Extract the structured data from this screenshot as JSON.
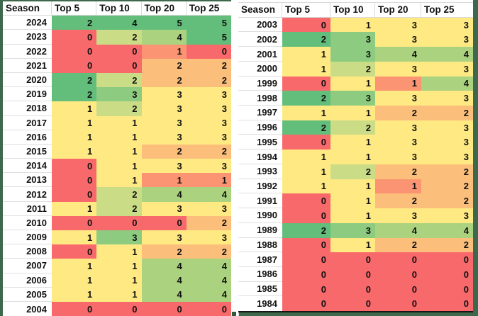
{
  "app": {
    "type": "spreadsheet-heatmap",
    "description": "Seasons vs Top 5/10/20/25 counts with red-yellow-green conditional formatting"
  },
  "colors": {
    "frame": "#3E684C",
    "gridline": "#D9D9D9",
    "table_bg": "#FFFFFF",
    "text": "#111111",
    "bottom_border": "#161616",
    "scale": {
      "red": "#F8696B",
      "salmon": "#FA9473",
      "orange": "#FCBF7B",
      "yellow": "#FFE983",
      "yellow_green": "#CBDC87",
      "med_green": "#8DCB80",
      "light_green": "#ABD27E",
      "green": "#63BE7B"
    }
  },
  "tables": [
    {
      "headers": [
        "Season",
        "Top 5",
        "Top 10",
        "Top 20",
        "Top 25"
      ],
      "rows": [
        {
          "season": "2024",
          "values": [
            "2",
            "4",
            "5",
            "5"
          ],
          "colors": [
            "green",
            "green",
            "green",
            "green"
          ]
        },
        {
          "season": "2023",
          "values": [
            "0",
            "2",
            "4",
            "5"
          ],
          "colors": [
            "red",
            "yellow_green",
            "light_green",
            "green"
          ]
        },
        {
          "season": "2022",
          "values": [
            "0",
            "0",
            "1",
            "0"
          ],
          "colors": [
            "red",
            "red",
            "salmon",
            "red"
          ]
        },
        {
          "season": "2021",
          "values": [
            "0",
            "0",
            "2",
            "2"
          ],
          "colors": [
            "red",
            "red",
            "orange",
            "orange"
          ]
        },
        {
          "season": "2020",
          "values": [
            "2",
            "2",
            "2",
            "2"
          ],
          "colors": [
            "green",
            "yellow_green",
            "orange",
            "orange"
          ]
        },
        {
          "season": "2019",
          "values": [
            "2",
            "3",
            "3",
            "3"
          ],
          "colors": [
            "green",
            "med_green",
            "yellow",
            "yellow"
          ]
        },
        {
          "season": "2018",
          "values": [
            "1",
            "2",
            "3",
            "3"
          ],
          "colors": [
            "yellow",
            "yellow_green",
            "yellow",
            "yellow"
          ]
        },
        {
          "season": "2017",
          "values": [
            "1",
            "1",
            "3",
            "3"
          ],
          "colors": [
            "yellow",
            "yellow",
            "yellow",
            "yellow"
          ]
        },
        {
          "season": "2016",
          "values": [
            "1",
            "1",
            "3",
            "3"
          ],
          "colors": [
            "yellow",
            "yellow",
            "yellow",
            "yellow"
          ]
        },
        {
          "season": "2015",
          "values": [
            "1",
            "1",
            "2",
            "2"
          ],
          "colors": [
            "yellow",
            "yellow",
            "orange",
            "orange"
          ]
        },
        {
          "season": "2014",
          "values": [
            "0",
            "1",
            "3",
            "3"
          ],
          "colors": [
            "red",
            "yellow",
            "yellow",
            "yellow"
          ]
        },
        {
          "season": "2013",
          "values": [
            "0",
            "1",
            "1",
            "1"
          ],
          "colors": [
            "red",
            "yellow",
            "salmon",
            "salmon"
          ]
        },
        {
          "season": "2012",
          "values": [
            "0",
            "2",
            "4",
            "4"
          ],
          "colors": [
            "red",
            "yellow_green",
            "light_green",
            "light_green"
          ]
        },
        {
          "season": "2011",
          "values": [
            "1",
            "2",
            "3",
            "3"
          ],
          "colors": [
            "yellow",
            "yellow_green",
            "yellow",
            "yellow"
          ]
        },
        {
          "season": "2010",
          "values": [
            "0",
            "0",
            "0",
            "2"
          ],
          "colors": [
            "red",
            "red",
            "red",
            "orange"
          ]
        },
        {
          "season": "2009",
          "values": [
            "1",
            "3",
            "3",
            "3"
          ],
          "colors": [
            "yellow",
            "med_green",
            "yellow",
            "yellow"
          ]
        },
        {
          "season": "2008",
          "values": [
            "0",
            "1",
            "2",
            "2"
          ],
          "colors": [
            "red",
            "yellow",
            "orange",
            "orange"
          ]
        },
        {
          "season": "2007",
          "values": [
            "1",
            "1",
            "4",
            "4"
          ],
          "colors": [
            "yellow",
            "yellow",
            "light_green",
            "light_green"
          ]
        },
        {
          "season": "2006",
          "values": [
            "1",
            "1",
            "4",
            "4"
          ],
          "colors": [
            "yellow",
            "yellow",
            "light_green",
            "light_green"
          ]
        },
        {
          "season": "2005",
          "values": [
            "1",
            "1",
            "4",
            "4"
          ],
          "colors": [
            "yellow",
            "yellow",
            "light_green",
            "light_green"
          ]
        },
        {
          "season": "2004",
          "values": [
            "0",
            "0",
            "0",
            "0"
          ],
          "colors": [
            "red",
            "red",
            "red",
            "red"
          ]
        }
      ]
    },
    {
      "headers": [
        "Season",
        "Top 5",
        "Top 10",
        "Top 20",
        "Top 25"
      ],
      "rows": [
        {
          "season": "2003",
          "values": [
            "0",
            "1",
            "3",
            "3"
          ],
          "colors": [
            "red",
            "yellow",
            "yellow",
            "yellow"
          ]
        },
        {
          "season": "2002",
          "values": [
            "2",
            "3",
            "3",
            "3"
          ],
          "colors": [
            "green",
            "med_green",
            "yellow",
            "yellow"
          ]
        },
        {
          "season": "2001",
          "values": [
            "1",
            "3",
            "4",
            "4"
          ],
          "colors": [
            "yellow",
            "med_green",
            "light_green",
            "light_green"
          ]
        },
        {
          "season": "2000",
          "values": [
            "1",
            "2",
            "3",
            "3"
          ],
          "colors": [
            "yellow",
            "yellow_green",
            "yellow",
            "yellow"
          ]
        },
        {
          "season": "1999",
          "values": [
            "0",
            "1",
            "1",
            "4"
          ],
          "colors": [
            "red",
            "yellow",
            "salmon",
            "light_green"
          ]
        },
        {
          "season": "1998",
          "values": [
            "2",
            "3",
            "3",
            "3"
          ],
          "colors": [
            "green",
            "med_green",
            "yellow",
            "yellow"
          ]
        },
        {
          "season": "1997",
          "values": [
            "1",
            "1",
            "2",
            "2"
          ],
          "colors": [
            "yellow",
            "yellow",
            "orange",
            "orange"
          ]
        },
        {
          "season": "1996",
          "values": [
            "2",
            "2",
            "3",
            "3"
          ],
          "colors": [
            "green",
            "yellow_green",
            "yellow",
            "yellow"
          ]
        },
        {
          "season": "1995",
          "values": [
            "0",
            "1",
            "3",
            "3"
          ],
          "colors": [
            "red",
            "yellow",
            "yellow",
            "yellow"
          ]
        },
        {
          "season": "1994",
          "values": [
            "1",
            "1",
            "3",
            "3"
          ],
          "colors": [
            "yellow",
            "yellow",
            "yellow",
            "yellow"
          ]
        },
        {
          "season": "1993",
          "values": [
            "1",
            "2",
            "2",
            "2"
          ],
          "colors": [
            "yellow",
            "yellow_green",
            "orange",
            "orange"
          ]
        },
        {
          "season": "1992",
          "values": [
            "1",
            "1",
            "1",
            "2"
          ],
          "colors": [
            "yellow",
            "yellow",
            "salmon",
            "orange"
          ]
        },
        {
          "season": "1991",
          "values": [
            "0",
            "1",
            "2",
            "2"
          ],
          "colors": [
            "red",
            "yellow",
            "orange",
            "orange"
          ]
        },
        {
          "season": "1990",
          "values": [
            "0",
            "1",
            "3",
            "3"
          ],
          "colors": [
            "red",
            "yellow",
            "yellow",
            "yellow"
          ]
        },
        {
          "season": "1989",
          "values": [
            "2",
            "3",
            "4",
            "4"
          ],
          "colors": [
            "green",
            "med_green",
            "light_green",
            "light_green"
          ]
        },
        {
          "season": "1988",
          "values": [
            "0",
            "1",
            "2",
            "2"
          ],
          "colors": [
            "red",
            "yellow",
            "orange",
            "orange"
          ]
        },
        {
          "season": "1987",
          "values": [
            "0",
            "0",
            "0",
            "0"
          ],
          "colors": [
            "red",
            "red",
            "red",
            "red"
          ]
        },
        {
          "season": "1986",
          "values": [
            "0",
            "0",
            "0",
            "0"
          ],
          "colors": [
            "red",
            "red",
            "red",
            "red"
          ]
        },
        {
          "season": "1985",
          "values": [
            "0",
            "0",
            "0",
            "0"
          ],
          "colors": [
            "red",
            "red",
            "red",
            "red"
          ]
        },
        {
          "season": "1984",
          "values": [
            "0",
            "0",
            "0",
            "0"
          ],
          "colors": [
            "red",
            "red",
            "red",
            "red"
          ]
        }
      ]
    }
  ]
}
